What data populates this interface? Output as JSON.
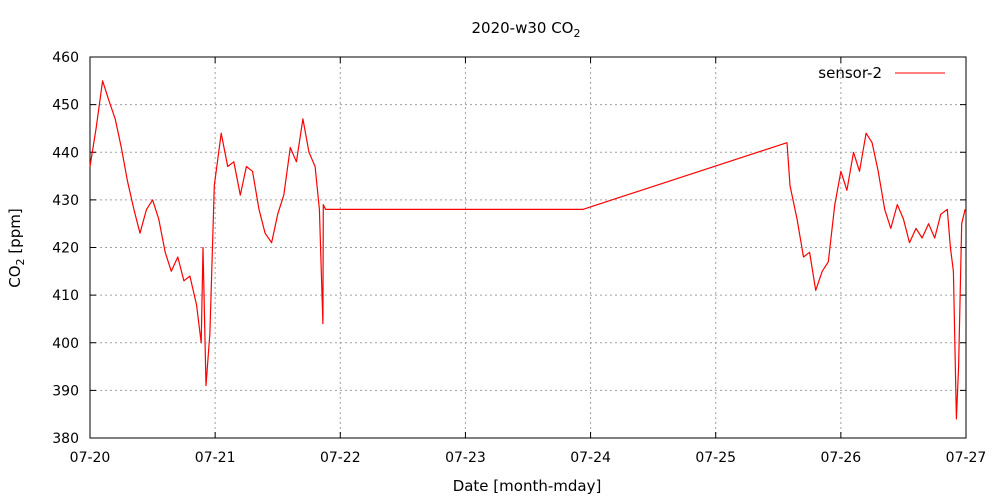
{
  "chart_data": {
    "type": "line",
    "title": {
      "prefix": "2020-w30 CO",
      "subscript": "2"
    },
    "xlabel": "Date [month-mday]",
    "ylabel": {
      "prefix": "CO",
      "subscript": "2",
      "suffix": " [ppm]"
    },
    "x_ticks": [
      "07-20",
      "07-21",
      "07-22",
      "07-23",
      "07-24",
      "07-25",
      "07-26",
      "07-27"
    ],
    "xlim": [
      "2020-07-20",
      "2020-07-27"
    ],
    "ylim": [
      380,
      460
    ],
    "y_ticks": [
      380,
      390,
      400,
      410,
      420,
      430,
      440,
      450,
      460
    ],
    "grid": true,
    "legend_position": "top-right",
    "series": [
      {
        "name": "sensor-2",
        "color": "#ff0000",
        "x": [
          "2020-07-20 00:00",
          "2020-07-20 01:10",
          "2020-07-20 02:25",
          "2020-07-20 03:35",
          "2020-07-20 04:50",
          "2020-07-20 06:00",
          "2020-07-20 07:10",
          "2020-07-20 08:25",
          "2020-07-20 09:35",
          "2020-07-20 10:50",
          "2020-07-20 12:00",
          "2020-07-20 13:10",
          "2020-07-20 14:25",
          "2020-07-20 15:35",
          "2020-07-20 16:50",
          "2020-07-20 18:00",
          "2020-07-20 19:10",
          "2020-07-20 20:25",
          "2020-07-20 21:20",
          "2020-07-20 21:40",
          "2020-07-20 22:15",
          "2020-07-20 23:00",
          "2020-07-20 23:50",
          "2020-07-21 01:10",
          "2020-07-21 02:25",
          "2020-07-21 03:35",
          "2020-07-21 04:50",
          "2020-07-21 06:00",
          "2020-07-21 07:10",
          "2020-07-21 08:25",
          "2020-07-21 09:35",
          "2020-07-21 10:50",
          "2020-07-21 12:00",
          "2020-07-21 13:10",
          "2020-07-21 14:25",
          "2020-07-21 15:35",
          "2020-07-21 16:50",
          "2020-07-21 18:00",
          "2020-07-21 19:10",
          "2020-07-21 20:00",
          "2020-07-21 20:40",
          "2020-07-21 20:45",
          "2020-07-21 21:10",
          "2020-07-21 23:00",
          "2020-07-23 22:30",
          "2020-07-25 13:40",
          "2020-07-25 14:15",
          "2020-07-25 15:35",
          "2020-07-25 16:50",
          "2020-07-25 18:00",
          "2020-07-25 19:10",
          "2020-07-25 20:25",
          "2020-07-25 21:35",
          "2020-07-25 22:50",
          "2020-07-26 00:00",
          "2020-07-26 01:10",
          "2020-07-26 02:25",
          "2020-07-26 03:35",
          "2020-07-26 04:50",
          "2020-07-26 06:00",
          "2020-07-26 07:10",
          "2020-07-26 08:25",
          "2020-07-26 09:35",
          "2020-07-26 10:50",
          "2020-07-26 12:00",
          "2020-07-26 13:10",
          "2020-07-26 14:25",
          "2020-07-26 15:35",
          "2020-07-26 16:50",
          "2020-07-26 18:00",
          "2020-07-26 19:10",
          "2020-07-26 20:25",
          "2020-07-26 21:00",
          "2020-07-26 21:35",
          "2020-07-26 22:10",
          "2020-07-26 22:35",
          "2020-07-26 23:10",
          "2020-07-26 23:50"
        ],
        "y": [
          437,
          445,
          455,
          451,
          447,
          441,
          434,
          428,
          423,
          428,
          430,
          426,
          419,
          415,
          418,
          413,
          414,
          408,
          400,
          420,
          391,
          402,
          433,
          444,
          437,
          438,
          431,
          437,
          436,
          428,
          423,
          421,
          427,
          431,
          441,
          438,
          447,
          440,
          437,
          428,
          404,
          429,
          428,
          428,
          428,
          442,
          433,
          426,
          418,
          419,
          411,
          415,
          417,
          429,
          436,
          432,
          440,
          436,
          444,
          442,
          436,
          428,
          424,
          429,
          426,
          421,
          424,
          422,
          425,
          422,
          427,
          428,
          420,
          415,
          384,
          395,
          425,
          428
        ]
      }
    ]
  }
}
